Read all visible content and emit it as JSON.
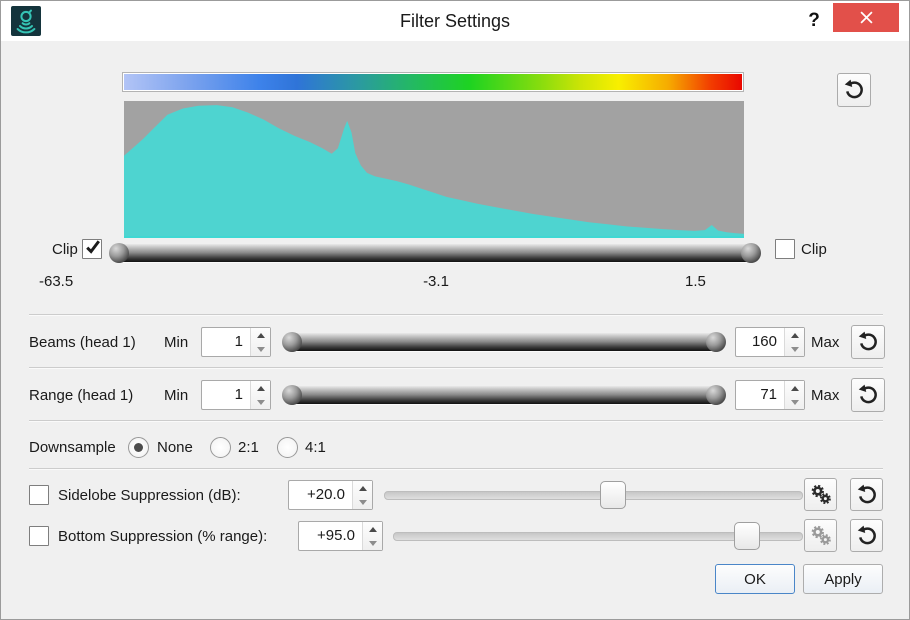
{
  "window": {
    "title": "Filter Settings",
    "help_label": "?"
  },
  "colors": {
    "close_button": "#e2504a",
    "histogram_fill": "#4ed4d0",
    "histogram_bg": "#a2a2a2",
    "titlebar_icon_bg": "#14343c",
    "titlebar_icon_glyph": "#35c4b5",
    "ok_button_border": "#4a86c8"
  },
  "colorbar": {
    "stops": [
      "#b2c4f6 0%",
      "#7ea4ee 10%",
      "#3d82ea 22%",
      "#2f74d8 28%",
      "#2b9aa0 38%",
      "#23ba60 47%",
      "#1ed321 56%",
      "#84dc0e 67%",
      "#cde406 74%",
      "#f8ef00 80%",
      "#f6ac00 88%",
      "#f23c00 95%",
      "#e90700 100%"
    ]
  },
  "histogram": {
    "points": [
      [
        0,
        0.6
      ],
      [
        0.015,
        0.66
      ],
      [
        0.03,
        0.72
      ],
      [
        0.05,
        0.81
      ],
      [
        0.07,
        0.9
      ],
      [
        0.095,
        0.945
      ],
      [
        0.12,
        0.965
      ],
      [
        0.15,
        0.97
      ],
      [
        0.175,
        0.955
      ],
      [
        0.2,
        0.915
      ],
      [
        0.225,
        0.865
      ],
      [
        0.25,
        0.8
      ],
      [
        0.275,
        0.745
      ],
      [
        0.3,
        0.7
      ],
      [
        0.32,
        0.655
      ],
      [
        0.335,
        0.615
      ],
      [
        0.345,
        0.655
      ],
      [
        0.355,
        0.8
      ],
      [
        0.36,
        0.855
      ],
      [
        0.367,
        0.77
      ],
      [
        0.373,
        0.62
      ],
      [
        0.382,
        0.53
      ],
      [
        0.392,
        0.475
      ],
      [
        0.405,
        0.45
      ],
      [
        0.42,
        0.435
      ],
      [
        0.44,
        0.415
      ],
      [
        0.46,
        0.39
      ],
      [
        0.48,
        0.36
      ],
      [
        0.5,
        0.33
      ],
      [
        0.52,
        0.3
      ],
      [
        0.545,
        0.275
      ],
      [
        0.57,
        0.25
      ],
      [
        0.6,
        0.225
      ],
      [
        0.63,
        0.2
      ],
      [
        0.66,
        0.175
      ],
      [
        0.69,
        0.155
      ],
      [
        0.72,
        0.135
      ],
      [
        0.75,
        0.115
      ],
      [
        0.78,
        0.1
      ],
      [
        0.81,
        0.085
      ],
      [
        0.84,
        0.075
      ],
      [
        0.87,
        0.065
      ],
      [
        0.895,
        0.058
      ],
      [
        0.92,
        0.052
      ],
      [
        0.937,
        0.058
      ],
      [
        0.948,
        0.095
      ],
      [
        0.958,
        0.055
      ],
      [
        0.972,
        0.042
      ],
      [
        0.985,
        0.036
      ],
      [
        1,
        0.03
      ]
    ]
  },
  "clip": {
    "left_label": "Clip",
    "right_label": "Clip",
    "left_checked": true,
    "right_checked": false,
    "min_value": "-63.5",
    "mid_value": "-3.1",
    "max_value": "1.5"
  },
  "beams": {
    "label": "Beams (head 1)",
    "min_label": "Min",
    "max_label": "Max",
    "min_value": "1",
    "max_value": "160"
  },
  "range": {
    "label": "Range (head 1)",
    "min_label": "Min",
    "max_label": "Max",
    "min_value": "1",
    "max_value": "71"
  },
  "downsample": {
    "label": "Downsample",
    "options": [
      {
        "label": "None",
        "selected": true
      },
      {
        "label": "2:1",
        "selected": false
      },
      {
        "label": "4:1",
        "selected": false
      }
    ]
  },
  "sidelobe": {
    "label": "Sidelobe Suppression (dB):",
    "checked": false,
    "value": "+20.0",
    "slider_pos": 0.55
  },
  "bottom": {
    "label": "Bottom Suppression (% range):",
    "checked": false,
    "value": "+95.0",
    "slider_pos": 0.89
  },
  "buttons": {
    "ok": "OK",
    "apply": "Apply"
  }
}
